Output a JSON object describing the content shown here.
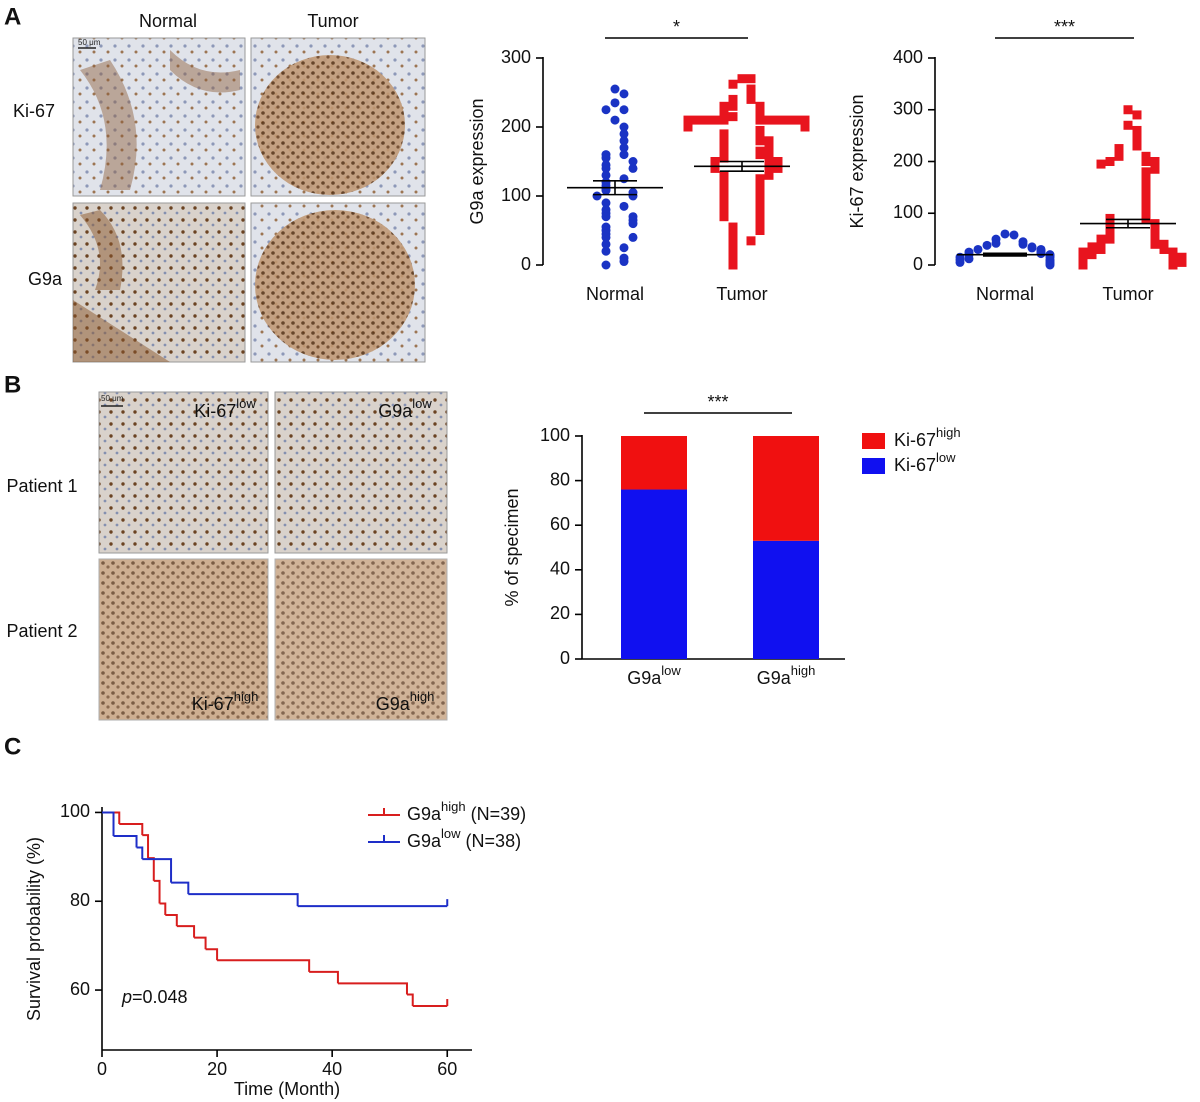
{
  "figure": {
    "panel_labels": [
      "A",
      "B",
      "C"
    ],
    "panel_a": {
      "columns": [
        "Normal",
        "Tumor"
      ],
      "rows": [
        "Ki-67",
        "G9a"
      ],
      "scale_bar": "50 μm"
    },
    "panel_b": {
      "rows": [
        "Patient 1",
        "Patient 2"
      ],
      "scale_bar": "50 μm",
      "image_labels": [
        {
          "text": "Ki-67",
          "sup": "low"
        },
        {
          "text": "G9a",
          "sup": "low"
        },
        {
          "text": "Ki-67",
          "sup": "high"
        },
        {
          "text": "G9a",
          "sup": "high"
        }
      ]
    }
  },
  "chart_data": [
    {
      "type": "dotplot",
      "ylabel": "G9a expression",
      "significance": "*",
      "categories": [
        "Normal",
        "Tumor"
      ],
      "ylim": [
        0,
        300
      ],
      "yticks": [
        0,
        100,
        200,
        300
      ],
      "groups": [
        {
          "color": "#1a33c4",
          "marker": "circle",
          "mean": 112,
          "sem": 10,
          "values": [
            255,
            248,
            235,
            225,
            225,
            210,
            200,
            190,
            180,
            170,
            160,
            160,
            155,
            150,
            145,
            140,
            140,
            130,
            125,
            120,
            115,
            110,
            108,
            105,
            100,
            100,
            90,
            85,
            80,
            75,
            70,
            70,
            65,
            60,
            55,
            50,
            45,
            40,
            40,
            30,
            25,
            20,
            10,
            5,
            0
          ]
        },
        {
          "color": "#e8141e",
          "marker": "square",
          "mean": 143,
          "sem": 7,
          "values": [
            270,
            270,
            262,
            255,
            250,
            240,
            240,
            230,
            230,
            230,
            220,
            220,
            215,
            210,
            210,
            210,
            210,
            210,
            210,
            210,
            210,
            210,
            210,
            210,
            205,
            200,
            200,
            195,
            190,
            190,
            185,
            180,
            180,
            180,
            175,
            170,
            170,
            165,
            160,
            160,
            160,
            155,
            155,
            150,
            150,
            150,
            145,
            145,
            140,
            140,
            140,
            135,
            130,
            130,
            125,
            120,
            120,
            115,
            110,
            110,
            105,
            100,
            100,
            95,
            90,
            90,
            85,
            80,
            80,
            75,
            70,
            70,
            65,
            60,
            55,
            50,
            50,
            40,
            35,
            30,
            25,
            20,
            15,
            10,
            5,
            0
          ]
        }
      ]
    },
    {
      "type": "dotplot",
      "ylabel": "Ki-67 expression",
      "significance": "***",
      "categories": [
        "Normal",
        "Tumor"
      ],
      "ylim": [
        0,
        400
      ],
      "yticks": [
        0,
        100,
        200,
        300,
        400
      ],
      "groups": [
        {
          "color": "#1a33c4",
          "marker": "circle",
          "mean": 20,
          "sem": 2.5,
          "values": [
            60,
            58,
            50,
            45,
            42,
            40,
            38,
            35,
            33,
            30,
            30,
            28,
            25,
            25,
            22,
            20,
            20,
            18,
            15,
            15,
            12,
            10,
            10,
            8,
            5,
            5,
            3,
            0
          ]
        },
        {
          "color": "#e8141e",
          "marker": "square",
          "mean": 80,
          "sem": 8,
          "values": [
            300,
            290,
            270,
            260,
            250,
            240,
            230,
            225,
            220,
            210,
            210,
            205,
            200,
            200,
            200,
            195,
            190,
            185,
            180,
            175,
            170,
            165,
            160,
            155,
            150,
            145,
            140,
            135,
            130,
            125,
            120,
            115,
            110,
            105,
            100,
            95,
            90,
            90,
            85,
            80,
            80,
            75,
            70,
            70,
            65,
            60,
            60,
            55,
            50,
            50,
            50,
            45,
            40,
            40,
            40,
            35,
            35,
            30,
            30,
            30,
            25,
            25,
            25,
            20,
            20,
            20,
            15,
            15,
            15,
            10,
            10,
            10,
            5,
            5,
            5,
            0,
            0
          ]
        }
      ]
    },
    {
      "type": "stacked_bar",
      "ylabel": "% of specimen",
      "significance": "***",
      "categories": [
        {
          "text": "G9a",
          "sup": "low"
        },
        {
          "text": "G9a",
          "sup": "high"
        }
      ],
      "ylim": [
        0,
        100
      ],
      "yticks": [
        0,
        20,
        40,
        60,
        80,
        100
      ],
      "series": [
        {
          "name": {
            "text": "Ki-67",
            "sup": "low"
          },
          "color": "#1010f0",
          "values": [
            76,
            53
          ]
        },
        {
          "name": {
            "text": "Ki-67",
            "sup": "high"
          },
          "color": "#f01010",
          "values": [
            24,
            47
          ]
        }
      ]
    },
    {
      "type": "km",
      "xlabel": "Time (Month)",
      "ylabel": "Survival probability (%)",
      "annotation": {
        "italic": "p",
        "text": "=0.048"
      },
      "xlim": [
        0,
        64.3
      ],
      "xticks": [
        0,
        20,
        40,
        60
      ],
      "ylim": [
        46.5,
        101
      ],
      "yticks": [
        60,
        80,
        100
      ],
      "series": [
        {
          "name": {
            "text": "G9a",
            "sup": "high",
            "suffix": " (N=39)"
          },
          "color": "#d81e1e",
          "x": [
            0,
            3,
            7,
            8,
            9,
            10,
            11,
            13,
            16,
            18,
            20,
            36,
            41,
            53,
            54,
            60
          ],
          "values": [
            100,
            97.4,
            94.9,
            89.7,
            84.6,
            79.5,
            76.9,
            74.4,
            71.8,
            69.2,
            66.7,
            64.1,
            61.5,
            59,
            56.4,
            56.4
          ]
        },
        {
          "name": {
            "text": "G9a",
            "sup": "low",
            "suffix": " (N=38)"
          },
          "color": "#1e2ec8",
          "x": [
            0,
            2,
            6,
            7,
            12,
            15,
            34,
            60
          ],
          "values": [
            100,
            94.7,
            92.1,
            89.5,
            84.2,
            81.6,
            78.9,
            78.9
          ]
        }
      ]
    }
  ]
}
